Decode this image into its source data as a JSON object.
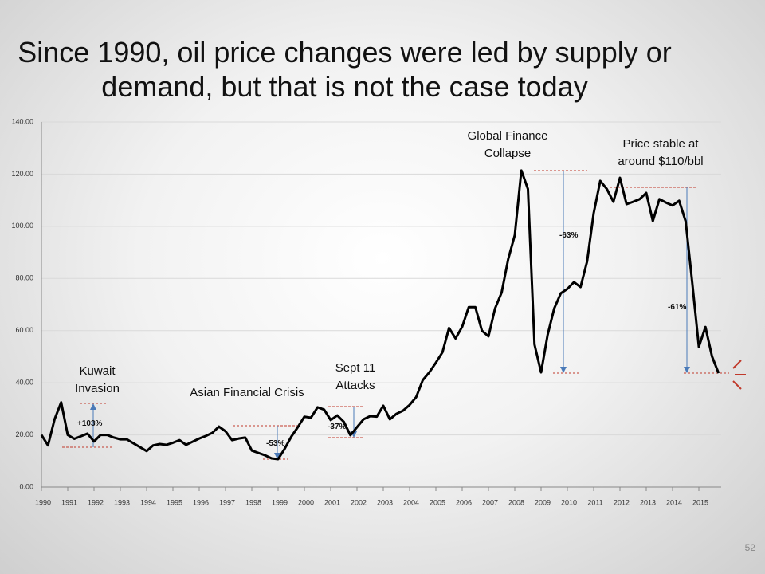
{
  "chart_data": {
    "type": "line",
    "title": "Since 1990, oil price changes were led by supply or demand, but that is not the case today",
    "categories": [
      "1990",
      null,
      null,
      null,
      "1991",
      null,
      null,
      null,
      "1992",
      null,
      null,
      null,
      "1993",
      null,
      null,
      null,
      "1994",
      null,
      null,
      null,
      "1995",
      null,
      null,
      null,
      "1996",
      null,
      null,
      null,
      "1997",
      null,
      null,
      null,
      "1998",
      null,
      null,
      null,
      "1999",
      null,
      null,
      null,
      "2000",
      null,
      null,
      null,
      "2001",
      null,
      null,
      null,
      "2002",
      null,
      null,
      null,
      "2003",
      null,
      null,
      null,
      "2004",
      null,
      null,
      null,
      "2005",
      null,
      null,
      null,
      "2006",
      null,
      null,
      null,
      "2007",
      null,
      null,
      null,
      "2008",
      null,
      null,
      null,
      "2009",
      null,
      null,
      null,
      "2010",
      null,
      null,
      null,
      "2011",
      null,
      null,
      null,
      "2012",
      null,
      null,
      null,
      "2013",
      null,
      null,
      null,
      "2014",
      null,
      null,
      null,
      "2015",
      null,
      null,
      null
    ],
    "values": [
      20,
      16,
      26,
      32.5,
      20,
      18.5,
      19.5,
      20.5,
      17.5,
      20,
      20,
      19,
      18.3,
      18.3,
      16.8,
      15.3,
      13.8,
      16,
      16.5,
      16.2,
      17,
      18,
      16.2,
      17.4,
      18.6,
      19.6,
      20.8,
      23.2,
      21.4,
      18,
      18.6,
      19,
      14,
      13.1,
      12.2,
      11,
      10.7,
      14.7,
      19.3,
      23,
      27,
      26.6,
      30.6,
      29.7,
      25.7,
      27.5,
      25,
      19.9,
      23,
      26,
      27.2,
      27,
      31.2,
      26,
      28.1,
      29.3,
      31.5,
      34.5,
      41,
      44,
      47.7,
      51.7,
      61,
      57,
      61.5,
      69,
      69,
      60,
      57.8,
      68.5,
      74.6,
      87.4,
      96.6,
      121.4,
      114.3,
      54.7,
      44,
      58.4,
      68.5,
      74.3,
      76,
      78.6,
      76.7,
      86.5,
      105,
      117.4,
      114.3,
      109.4,
      118.6,
      108.5,
      109.4,
      110.4,
      112.8,
      102,
      110.4,
      109.1,
      108,
      109.8,
      101.8,
      78.3,
      53.8,
      61.4,
      50.1,
      43.7
    ],
    "color": "#000000",
    "ylim": [
      0,
      140
    ],
    "yticks": [
      {
        "value": 0,
        "label": "0.00"
      },
      {
        "value": 20,
        "label": "20.00"
      },
      {
        "value": 40,
        "label": "40.00"
      },
      {
        "value": 60,
        "label": "60.00"
      },
      {
        "value": 80,
        "label": "80.00"
      },
      {
        "value": 100,
        "label": "100.00"
      },
      {
        "value": 120,
        "label": "120.00"
      },
      {
        "value": 140,
        "label": "140.00"
      }
    ],
    "grid": true,
    "annotations": [
      "Kuwait Invasion",
      "+103%",
      "Asian Financial Crisis",
      "-53%",
      "Sept 11 Attacks",
      "-37%",
      "Global Finance Collapse",
      "-63%",
      "Price stable at around $110/bbl",
      "-61%"
    ]
  },
  "slide_number": "52"
}
